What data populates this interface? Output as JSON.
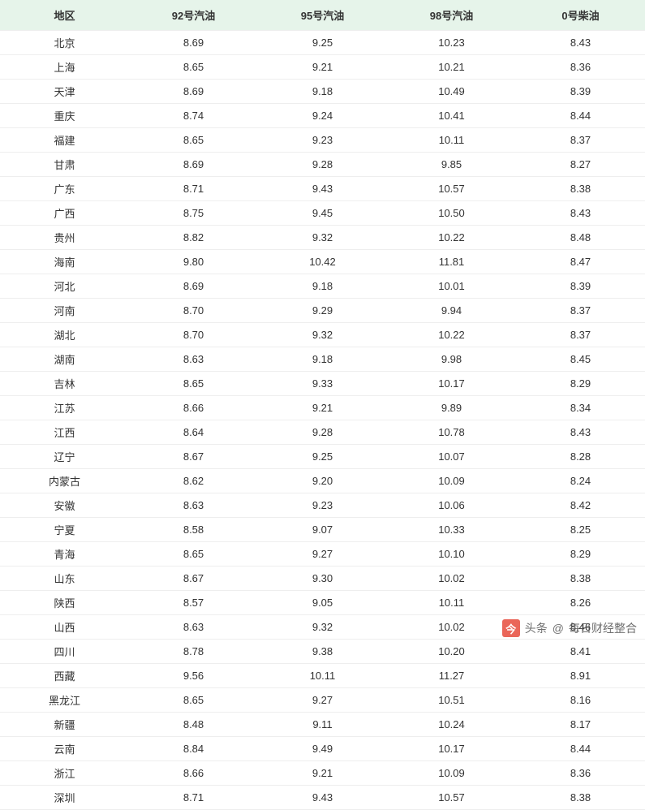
{
  "table": {
    "columns": [
      "地区",
      "92号汽油",
      "95号汽油",
      "98号汽油",
      "0号柴油"
    ],
    "header_bg": "#e6f4ea",
    "border_color": "#eeeeee",
    "font_size": 13,
    "font_family": "Microsoft YaHei",
    "text_color": "#333333",
    "rows": [
      [
        "北京",
        "8.69",
        "9.25",
        "10.23",
        "8.43"
      ],
      [
        "上海",
        "8.65",
        "9.21",
        "10.21",
        "8.36"
      ],
      [
        "天津",
        "8.69",
        "9.18",
        "10.49",
        "8.39"
      ],
      [
        "重庆",
        "8.74",
        "9.24",
        "10.41",
        "8.44"
      ],
      [
        "福建",
        "8.65",
        "9.23",
        "10.11",
        "8.37"
      ],
      [
        "甘肃",
        "8.69",
        "9.28",
        "9.85",
        "8.27"
      ],
      [
        "广东",
        "8.71",
        "9.43",
        "10.57",
        "8.38"
      ],
      [
        "广西",
        "8.75",
        "9.45",
        "10.50",
        "8.43"
      ],
      [
        "贵州",
        "8.82",
        "9.32",
        "10.22",
        "8.48"
      ],
      [
        "海南",
        "9.80",
        "10.42",
        "11.81",
        "8.47"
      ],
      [
        "河北",
        "8.69",
        "9.18",
        "10.01",
        "8.39"
      ],
      [
        "河南",
        "8.70",
        "9.29",
        "9.94",
        "8.37"
      ],
      [
        "湖北",
        "8.70",
        "9.32",
        "10.22",
        "8.37"
      ],
      [
        "湖南",
        "8.63",
        "9.18",
        "9.98",
        "8.45"
      ],
      [
        "吉林",
        "8.65",
        "9.33",
        "10.17",
        "8.29"
      ],
      [
        "江苏",
        "8.66",
        "9.21",
        "9.89",
        "8.34"
      ],
      [
        "江西",
        "8.64",
        "9.28",
        "10.78",
        "8.43"
      ],
      [
        "辽宁",
        "8.67",
        "9.25",
        "10.07",
        "8.28"
      ],
      [
        "内蒙古",
        "8.62",
        "9.20",
        "10.09",
        "8.24"
      ],
      [
        "安徽",
        "8.63",
        "9.23",
        "10.06",
        "8.42"
      ],
      [
        "宁夏",
        "8.58",
        "9.07",
        "10.33",
        "8.25"
      ],
      [
        "青海",
        "8.65",
        "9.27",
        "10.10",
        "8.29"
      ],
      [
        "山东",
        "8.67",
        "9.30",
        "10.02",
        "8.38"
      ],
      [
        "陕西",
        "8.57",
        "9.05",
        "10.11",
        "8.26"
      ],
      [
        "山西",
        "8.63",
        "9.32",
        "10.02",
        "8.46"
      ],
      [
        "四川",
        "8.78",
        "9.38",
        "10.20",
        "8.41"
      ],
      [
        "西藏",
        "9.56",
        "10.11",
        "11.27",
        "8.91"
      ],
      [
        "黑龙江",
        "8.65",
        "9.27",
        "10.51",
        "8.16"
      ],
      [
        "新疆",
        "8.48",
        "9.11",
        "10.24",
        "8.17"
      ],
      [
        "云南",
        "8.84",
        "9.49",
        "10.17",
        "8.44"
      ],
      [
        "浙江",
        "8.66",
        "9.21",
        "10.09",
        "8.36"
      ],
      [
        "深圳",
        "8.71",
        "9.43",
        "10.57",
        "8.38"
      ]
    ]
  },
  "watermark": {
    "prefix": "头条",
    "at": "@",
    "author": "每日财经整合",
    "icon_bg": "#e74c3c"
  }
}
